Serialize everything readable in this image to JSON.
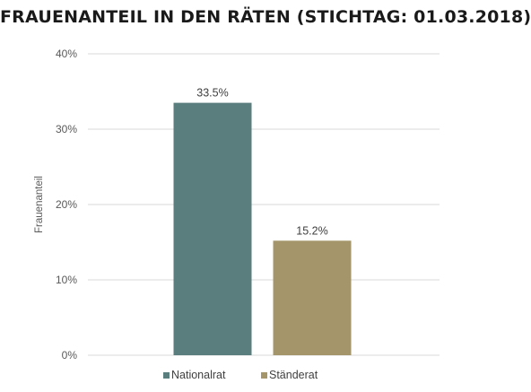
{
  "chart_data": {
    "type": "bar",
    "title": "FRAUENANTEIL IN DEN RÄTEN (STICHTAG: 01.03.2018)",
    "ylabel": "Frauenanteil",
    "xlabel": "",
    "ylim": [
      0,
      40
    ],
    "yticks": [
      {
        "value": 0,
        "label": "0%"
      },
      {
        "value": 10,
        "label": "10%"
      },
      {
        "value": 20,
        "label": "20%"
      },
      {
        "value": 30,
        "label": "30%"
      },
      {
        "value": 40,
        "label": "40%"
      }
    ],
    "grid": true,
    "legend_position": "bottom",
    "series": [
      {
        "name": "Nationalrat",
        "value": 33.5,
        "label": "33.5%",
        "color": "#5a7d7e"
      },
      {
        "name": "Ständerat",
        "value": 15.2,
        "label": "15.2%",
        "color": "#a4966a"
      }
    ]
  }
}
